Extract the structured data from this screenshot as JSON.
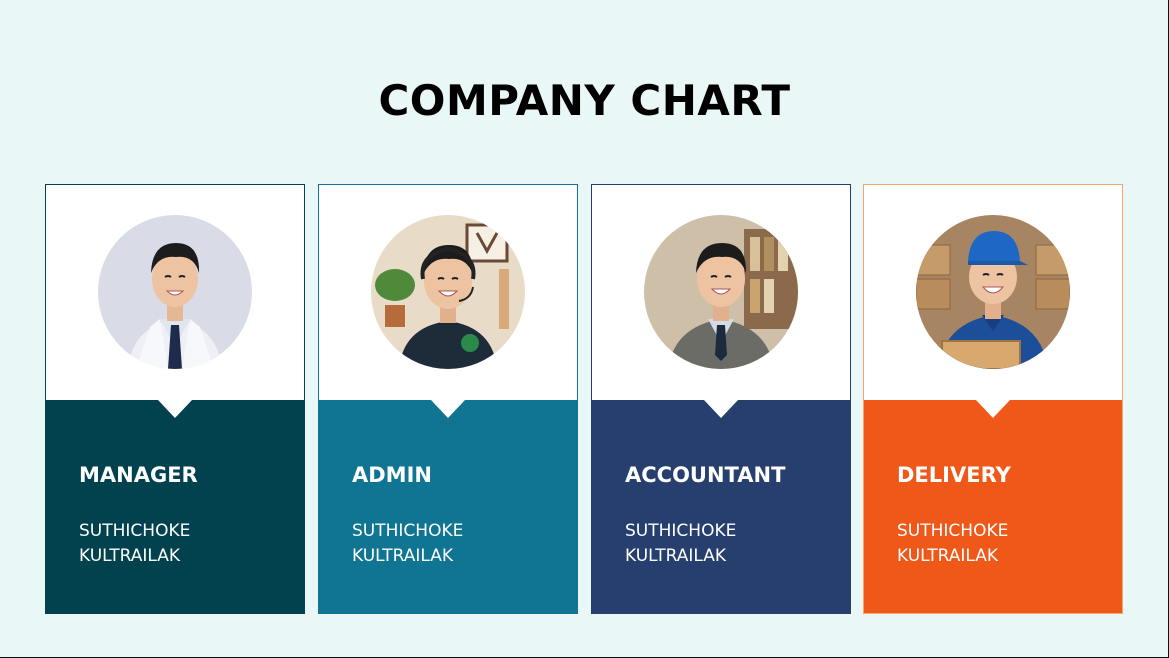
{
  "title": "COMPANY CHART",
  "cards": [
    {
      "role": "MANAGER",
      "name_line1": "SUTHICHOKE",
      "name_line2": "KULTRAILAK",
      "color": "#02424f",
      "border": "#02424f",
      "photo_icon": "manager-portrait"
    },
    {
      "role": "ADMIN",
      "name_line1": "SUTHICHOKE",
      "name_line2": "KULTRAILAK",
      "color": "#0f7593",
      "border": "#0f7593",
      "photo_icon": "admin-portrait"
    },
    {
      "role": "ACCOUNTANT",
      "name_line1": "SUTHICHOKE",
      "name_line2": "KULTRAILAK",
      "color": "#263f6e",
      "border": "#263f6e",
      "photo_icon": "accountant-portrait"
    },
    {
      "role": "DELIVERY",
      "name_line1": "SUTHICHOKE",
      "name_line2": "KULTRAILAK",
      "color": "#f05819",
      "border": "#f5a56e",
      "photo_icon": "delivery-portrait"
    }
  ]
}
